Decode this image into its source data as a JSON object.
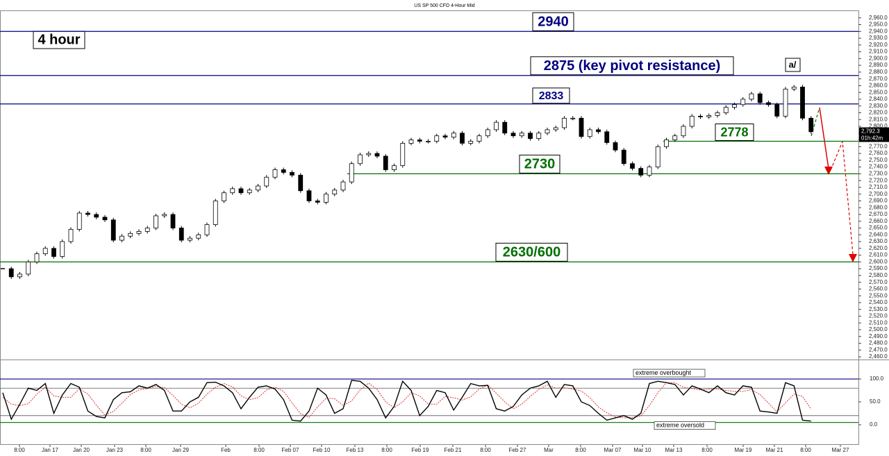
{
  "chart_data": {
    "type": "candlestick",
    "title": "US SP 500 CFD 4-Hour Mid",
    "annotation": "4 hour",
    "wave_label": "a/",
    "up_color": "#ffffff",
    "down_color": "#000000",
    "closes": [
      2590,
      2578,
      2582,
      2600,
      2612,
      2620,
      2608,
      2630,
      2648,
      2672,
      2670,
      2666,
      2662,
      2632,
      2638,
      2642,
      2645,
      2650,
      2668,
      2670,
      2650,
      2632,
      2635,
      2640,
      2655,
      2690,
      2702,
      2708,
      2702,
      2706,
      2712,
      2725,
      2736,
      2732,
      2728,
      2705,
      2690,
      2688,
      2700,
      2706,
      2718,
      2745,
      2758,
      2760,
      2756,
      2736,
      2742,
      2775,
      2780,
      2778,
      2778,
      2786,
      2784,
      2790,
      2775,
      2778,
      2786,
      2795,
      2806,
      2790,
      2786,
      2790,
      2782,
      2790,
      2795,
      2798,
      2812,
      2812,
      2785,
      2795,
      2792,
      2776,
      2765,
      2745,
      2738,
      2728,
      2740,
      2770,
      2780,
      2786,
      2800,
      2815,
      2814,
      2816,
      2820,
      2828,
      2832,
      2840,
      2848,
      2835,
      2832,
      2815,
      2855,
      2858,
      2812,
      2792
    ],
    "ylim": [
      2456,
      2971
    ],
    "yticks": [
      {
        "value": 2460,
        "label": "2,460.0"
      },
      {
        "value": 2470,
        "label": "2,470.0"
      },
      {
        "value": 2480,
        "label": "2,480.0"
      },
      {
        "value": 2490,
        "label": "2,490.0"
      },
      {
        "value": 2500,
        "label": "2,500.0"
      },
      {
        "value": 2510,
        "label": "2,510.0"
      },
      {
        "value": 2520,
        "label": "2,520.0"
      },
      {
        "value": 2530,
        "label": "2,530.0"
      },
      {
        "value": 2540,
        "label": "2,540.0"
      },
      {
        "value": 2550,
        "label": "2,550.0"
      },
      {
        "value": 2560,
        "label": "2,560.0"
      },
      {
        "value": 2570,
        "label": "2,570.0"
      },
      {
        "value": 2580,
        "label": "2,580.0"
      },
      {
        "value": 2590,
        "label": "2,590.0"
      },
      {
        "value": 2600,
        "label": "2,600.0"
      },
      {
        "value": 2610,
        "label": "2,610.0"
      },
      {
        "value": 2620,
        "label": "2,620.0"
      },
      {
        "value": 2630,
        "label": "2,630.0"
      },
      {
        "value": 2640,
        "label": "2,640.0"
      },
      {
        "value": 2650,
        "label": "2,650.0"
      },
      {
        "value": 2660,
        "label": "2,660.0"
      },
      {
        "value": 2670,
        "label": "2,670.0"
      },
      {
        "value": 2680,
        "label": "2,680.0"
      },
      {
        "value": 2690,
        "label": "2,690.0"
      },
      {
        "value": 2700,
        "label": "2,700.0"
      },
      {
        "value": 2710,
        "label": "2,710.0"
      },
      {
        "value": 2720,
        "label": "2,720.0"
      },
      {
        "value": 2730,
        "label": "2,730.0"
      },
      {
        "value": 2740,
        "label": "2,740.0"
      },
      {
        "value": 2750,
        "label": "2,750.0"
      },
      {
        "value": 2760,
        "label": "2,760.0"
      },
      {
        "value": 2770,
        "label": "2,770.0"
      },
      {
        "value": 2780,
        "label": "2,780.0"
      },
      {
        "value": 2790,
        "label": "2,790.0"
      },
      {
        "value": 2800,
        "label": "2,800.0"
      },
      {
        "value": 2810,
        "label": "2,810.0"
      },
      {
        "value": 2820,
        "label": "2,820.0"
      },
      {
        "value": 2830,
        "label": "2,830.0"
      },
      {
        "value": 2840,
        "label": "2,840.0"
      },
      {
        "value": 2850,
        "label": "2,850.0"
      },
      {
        "value": 2860,
        "label": "2,860.0"
      },
      {
        "value": 2870,
        "label": "2,870.0"
      },
      {
        "value": 2880,
        "label": "2,880.0"
      },
      {
        "value": 2890,
        "label": "2,890.0"
      },
      {
        "value": 2900,
        "label": "2,900.0"
      },
      {
        "value": 2910,
        "label": "2,910.0"
      },
      {
        "value": 2920,
        "label": "2,920.0"
      },
      {
        "value": 2930,
        "label": "2,930.0"
      },
      {
        "value": 2940,
        "label": "2,940.0"
      },
      {
        "value": 2950,
        "label": "2,950.0"
      },
      {
        "value": 2960,
        "label": "2,960.0"
      }
    ],
    "levels": [
      {
        "value": 2940,
        "label": "2940",
        "color": "#000080"
      },
      {
        "value": 2875,
        "label": "2875 (key pivot resistance)",
        "color": "#000080"
      },
      {
        "value": 2833,
        "label": "2833",
        "color": "#000080"
      },
      {
        "value": 2778,
        "label": "2778",
        "color": "#007000"
      },
      {
        "value": 2730,
        "label": "2730",
        "color": "#007000"
      },
      {
        "value": 2600,
        "label": "2630/600",
        "color": "#007000"
      }
    ],
    "current_price": {
      "value": 2792.3,
      "label": "2,792.3"
    },
    "countdown": "01h:42m",
    "x_labels": [
      "8:00",
      "Jan 17",
      "Jan 20",
      "Jan 23",
      "8:00",
      "Jan 29",
      "Feb",
      "8:00",
      "Feb 07",
      "Feb 10",
      "Feb 13",
      "8:00",
      "Feb 19",
      "Feb 21",
      "8:00",
      "Feb 27",
      "Mar",
      "8:00",
      "Mar 07",
      "Mar 10",
      "Mar 13",
      "8:00",
      "Mar 19",
      "Mar 21",
      "8:00",
      "Mar 27"
    ],
    "stochastic": {
      "ylim": [
        -44,
        141
      ],
      "yticks": [
        {
          "value": 100,
          "label": "100.0"
        },
        {
          "value": 50,
          "label": "50.0"
        },
        {
          "value": 0,
          "label": "0.0"
        }
      ],
      "k_color": "#000000",
      "d_color": "#e03030",
      "k_values": [
        70,
        12,
        45,
        80,
        75,
        90,
        25,
        65,
        90,
        82,
        30,
        18,
        15,
        55,
        70,
        72,
        85,
        80,
        88,
        75,
        30,
        30,
        50,
        60,
        92,
        93,
        85,
        70,
        35,
        60,
        82,
        85,
        78,
        55,
        10,
        8,
        30,
        80,
        65,
        25,
        35,
        97,
        95,
        80,
        55,
        15,
        40,
        95,
        75,
        20,
        40,
        75,
        70,
        32,
        60,
        90,
        85,
        86,
        35,
        30,
        40,
        65,
        80,
        85,
        95,
        60,
        88,
        85,
        50,
        42,
        25,
        10,
        15,
        20,
        12,
        25,
        90,
        95,
        92,
        88,
        65,
        85,
        78,
        70,
        85,
        70,
        65,
        85,
        82,
        30,
        28,
        25,
        92,
        85,
        10,
        8
      ],
      "d_values": [
        60,
        45,
        42,
        46,
        67,
        82,
        63,
        60,
        60,
        79,
        67,
        43,
        21,
        29,
        47,
        66,
        76,
        79,
        84,
        81,
        64,
        45,
        37,
        47,
        67,
        82,
        90,
        83,
        63,
        55,
        59,
        76,
        82,
        73,
        48,
        24,
        16,
        39,
        58,
        57,
        42,
        52,
        76,
        91,
        77,
        50,
        37,
        50,
        70,
        63,
        45,
        45,
        62,
        59,
        54,
        61,
        78,
        87,
        69,
        50,
        35,
        45,
        62,
        77,
        87,
        80,
        81,
        78,
        74,
        59,
        39,
        26,
        17,
        15,
        16,
        19,
        42,
        70,
        92,
        92,
        82,
        79,
        76,
        78,
        78,
        75,
        73,
        73,
        77,
        66,
        47,
        28,
        48,
        67,
        62,
        34
      ],
      "levels": [
        {
          "value": 100,
          "label": "extreme overbought",
          "color": "#000080"
        },
        {
          "value": 80,
          "color": "#555555"
        },
        {
          "value": 20,
          "color": "#555555"
        },
        {
          "value": 5,
          "label": "extreme oversold",
          "color": "#007000"
        }
      ]
    }
  }
}
